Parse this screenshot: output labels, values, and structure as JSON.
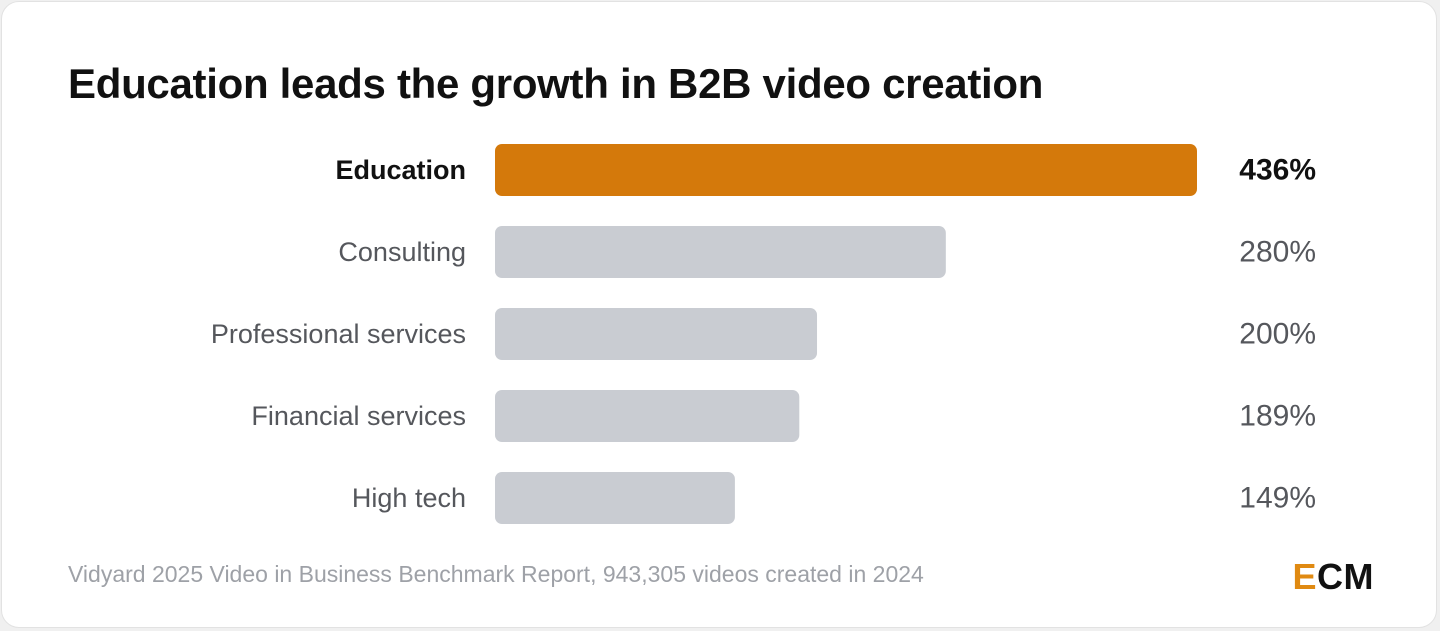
{
  "title": "Education leads the growth in B2B video creation",
  "source": "Vidyard 2025 Video in Business Benchmark Report, 943,305 videos created in 2024",
  "logo": {
    "first": "E",
    "rest": "CM"
  },
  "colors": {
    "highlight": "#d4790b",
    "bar": "#c9ccd2",
    "highlight_text": "#111111",
    "text": "#55575c",
    "muted": "#9ea1a7"
  },
  "chart_data": {
    "type": "bar",
    "orientation": "horizontal",
    "categories": [
      "Education",
      "Consulting",
      "Professional services",
      "Financial services",
      "High tech"
    ],
    "values": [
      436,
      280,
      200,
      189,
      149
    ],
    "value_labels": [
      "436%",
      "280%",
      "200%",
      "189%",
      "149%"
    ],
    "highlight_index": 0,
    "xlim": [
      0,
      436
    ],
    "grid": false
  }
}
